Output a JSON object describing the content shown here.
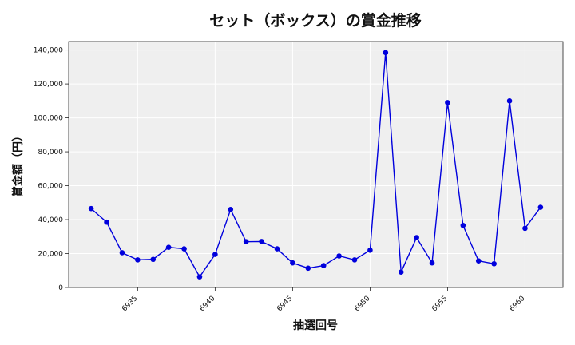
{
  "chart_data": {
    "type": "line",
    "title": "セット（ボックス）の賞金推移",
    "xlabel": "抽選回号",
    "ylabel": "賞金額（円）",
    "x": [
      6932,
      6933,
      6934,
      6935,
      6936,
      6937,
      6938,
      6939,
      6940,
      6941,
      6942,
      6943,
      6944,
      6945,
      6946,
      6947,
      6948,
      6949,
      6950,
      6951,
      6952,
      6953,
      6954,
      6955,
      6956,
      6957,
      6958,
      6959,
      6960,
      6961
    ],
    "series": [
      {
        "values": [
          46500,
          38500,
          20500,
          16300,
          16600,
          23700,
          22800,
          6300,
          19500,
          46000,
          27000,
          27100,
          22800,
          14500,
          11400,
          12900,
          18600,
          16300,
          22000,
          138500,
          9100,
          29400,
          14500,
          109000,
          36600,
          15700,
          14000,
          110000,
          34900,
          47300
        ],
        "color": "#0000dd"
      }
    ],
    "xlim": [
      6930.55,
      6962.45
    ],
    "ylim": [
      0,
      145000
    ],
    "x_ticks": [
      "6935",
      "6940",
      "6945",
      "6950",
      "6955",
      "6960"
    ],
    "y_ticks": [
      "0",
      "20,000",
      "40,000",
      "60,000",
      "80,000",
      "100,000",
      "120,000",
      "140,000"
    ],
    "grid": true,
    "legend": "none",
    "background": "#efefef"
  }
}
